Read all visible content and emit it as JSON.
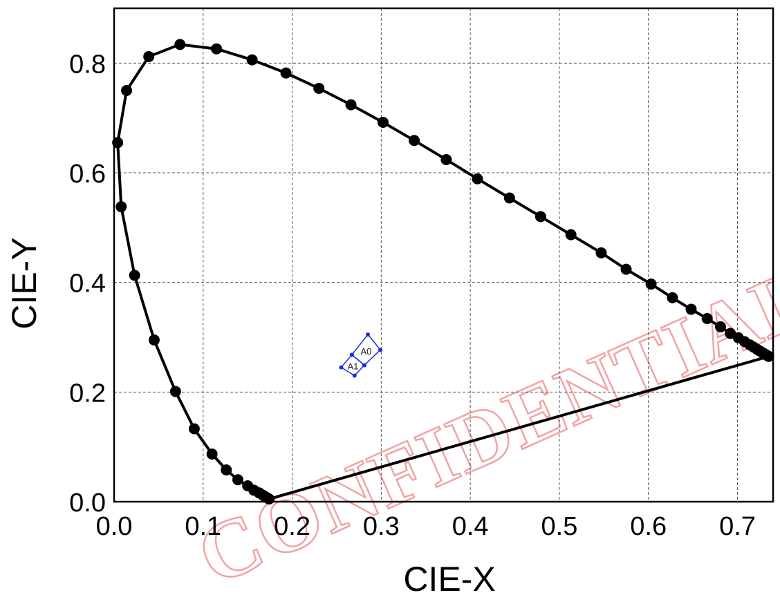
{
  "watermark": {
    "text": "CONFIDENTIAL",
    "color": "#e8262b"
  },
  "chart_data": {
    "type": "scatter",
    "xlabel": "CIE-X",
    "ylabel": "CIE-Y",
    "xlim": [
      0.0,
      0.74
    ],
    "ylim": [
      0.0,
      0.9
    ],
    "xticks": [
      "0.0",
      "0.1",
      "0.2",
      "0.3",
      "0.4",
      "0.5",
      "0.6",
      "0.7"
    ],
    "yticks": [
      "0.0",
      "0.2",
      "0.4",
      "0.6",
      "0.8"
    ],
    "grid": true,
    "grid_style": "dashed",
    "spectral_locus": {
      "color": "#000000",
      "points": [
        [
          0.174,
          0.005
        ],
        [
          0.172,
          0.007
        ],
        [
          0.17,
          0.009
        ],
        [
          0.167,
          0.012
        ],
        [
          0.163,
          0.016
        ],
        [
          0.157,
          0.021
        ],
        [
          0.15,
          0.029
        ],
        [
          0.139,
          0.04
        ],
        [
          0.126,
          0.058
        ],
        [
          0.11,
          0.087
        ],
        [
          0.09,
          0.133
        ],
        [
          0.069,
          0.201
        ],
        [
          0.045,
          0.295
        ],
        [
          0.023,
          0.413
        ],
        [
          0.008,
          0.538
        ],
        [
          0.004,
          0.655
        ],
        [
          0.014,
          0.75
        ],
        [
          0.039,
          0.812
        ],
        [
          0.074,
          0.834
        ],
        [
          0.115,
          0.826
        ],
        [
          0.155,
          0.806
        ],
        [
          0.193,
          0.782
        ],
        [
          0.23,
          0.754
        ],
        [
          0.266,
          0.724
        ],
        [
          0.302,
          0.692
        ],
        [
          0.337,
          0.659
        ],
        [
          0.373,
          0.624
        ],
        [
          0.408,
          0.589
        ],
        [
          0.444,
          0.554
        ],
        [
          0.479,
          0.52
        ],
        [
          0.513,
          0.487
        ],
        [
          0.547,
          0.454
        ],
        [
          0.575,
          0.424
        ],
        [
          0.603,
          0.397
        ],
        [
          0.627,
          0.372
        ],
        [
          0.648,
          0.351
        ],
        [
          0.666,
          0.334
        ],
        [
          0.681,
          0.319
        ],
        [
          0.692,
          0.307
        ],
        [
          0.701,
          0.299
        ],
        [
          0.708,
          0.292
        ],
        [
          0.714,
          0.286
        ],
        [
          0.718,
          0.282
        ],
        [
          0.722,
          0.278
        ],
        [
          0.725,
          0.275
        ],
        [
          0.728,
          0.272
        ],
        [
          0.73,
          0.27
        ],
        [
          0.732,
          0.268
        ],
        [
          0.734,
          0.266
        ],
        [
          0.735,
          0.265
        ]
      ]
    },
    "purple_line": [
      [
        0.174,
        0.005
      ],
      [
        0.735,
        0.265
      ]
    ],
    "regions": [
      {
        "label": "A0",
        "color": "#1a2fd6",
        "corners": [
          [
            0.285,
            0.305
          ],
          [
            0.299,
            0.277
          ],
          [
            0.281,
            0.249
          ],
          [
            0.267,
            0.268
          ]
        ]
      },
      {
        "label": "A1",
        "color": "#1a2fd6",
        "corners": [
          [
            0.267,
            0.268
          ],
          [
            0.281,
            0.249
          ],
          [
            0.27,
            0.23
          ],
          [
            0.255,
            0.245
          ]
        ]
      }
    ]
  }
}
